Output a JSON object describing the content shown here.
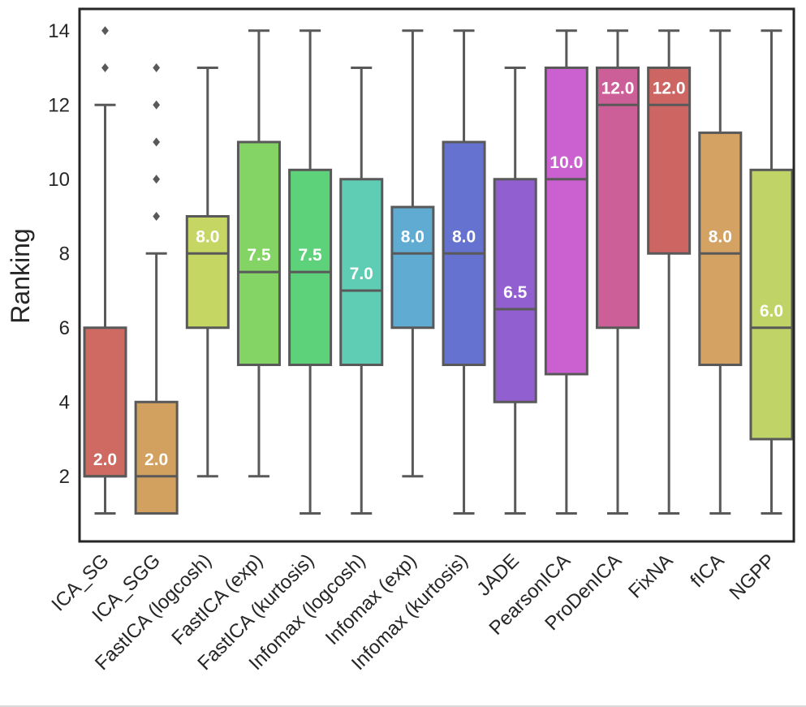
{
  "chart_data": {
    "type": "box",
    "title": "",
    "xlabel": "",
    "ylabel": "Ranking",
    "ylim": [
      0.4,
      14.7
    ],
    "yticks": [
      2,
      4,
      6,
      8,
      10,
      12,
      14
    ],
    "grid": false,
    "line_color": "#595959",
    "series": [
      {
        "name": "ICA_SG",
        "color": "#cf6a63",
        "whisker_low": 1,
        "q1": 2,
        "median": 2,
        "q3": 6,
        "whisker_high": 12,
        "outliers": [
          13,
          14
        ],
        "median_label": "2.0"
      },
      {
        "name": "ICA_SGG",
        "color": "#d2a05f",
        "whisker_low": 1,
        "q1": 1,
        "median": 2,
        "q3": 4,
        "whisker_high": 8,
        "outliers": [
          9,
          10,
          11,
          12,
          13
        ],
        "median_label": "2.0"
      },
      {
        "name": "FastICA (logcosh)",
        "color": "#c5d662",
        "whisker_low": 2,
        "q1": 6,
        "median": 8,
        "q3": 9,
        "whisker_high": 13,
        "outliers": [],
        "median_label": "8.0"
      },
      {
        "name": "FastICA (exp)",
        "color": "#84d465",
        "whisker_low": 2,
        "q1": 5,
        "median": 7.5,
        "q3": 11,
        "whisker_high": 14,
        "outliers": [],
        "median_label": "7.5"
      },
      {
        "name": "FastICA (kurtosis)",
        "color": "#5ed17b",
        "whisker_low": 1,
        "q1": 5,
        "median": 7.5,
        "q3": 10.25,
        "whisker_high": 14,
        "outliers": [],
        "median_label": "7.5"
      },
      {
        "name": "Infomax (logcosh)",
        "color": "#5fcdb3",
        "whisker_low": 1,
        "q1": 5,
        "median": 7,
        "q3": 10,
        "whisker_high": 13,
        "outliers": [],
        "median_label": "7.0"
      },
      {
        "name": "Infomax (exp)",
        "color": "#5fabd1",
        "whisker_low": 2,
        "q1": 6,
        "median": 8,
        "q3": 9.25,
        "whisker_high": 14,
        "outliers": [],
        "median_label": "8.0"
      },
      {
        "name": "Infomax (kurtosis)",
        "color": "#6572d0",
        "whisker_low": 1,
        "q1": 5,
        "median": 8,
        "q3": 11,
        "whisker_high": 14,
        "outliers": [],
        "median_label": "8.0"
      },
      {
        "name": "JADE",
        "color": "#925fd1",
        "whisker_low": 1,
        "q1": 4,
        "median": 6.5,
        "q3": 10,
        "whisker_high": 13,
        "outliers": [],
        "median_label": "6.5"
      },
      {
        "name": "PearsonICA",
        "color": "#cb60d0",
        "whisker_low": 1,
        "q1": 4.75,
        "median": 10,
        "q3": 13,
        "whisker_high": 14,
        "outliers": [],
        "median_label": "10.0"
      },
      {
        "name": "ProDenICA",
        "color": "#cc5f97",
        "whisker_low": 1,
        "q1": 6,
        "median": 12,
        "q3": 13,
        "whisker_high": 14,
        "outliers": [],
        "median_label": "12.0"
      },
      {
        "name": "FixNA",
        "color": "#cd6562",
        "whisker_low": 1,
        "q1": 8,
        "median": 12,
        "q3": 13,
        "whisker_high": 14,
        "outliers": [],
        "median_label": "12.0"
      },
      {
        "name": "fICA",
        "color": "#d4a262",
        "whisker_low": 1,
        "q1": 5,
        "median": 8,
        "q3": 11.25,
        "whisker_high": 14,
        "outliers": [],
        "median_label": "8.0"
      },
      {
        "name": "NGPP",
        "color": "#c0d366",
        "whisker_low": 1,
        "q1": 3,
        "median": 6,
        "q3": 10.25,
        "whisker_high": 14,
        "outliers": [],
        "median_label": "6.0"
      }
    ]
  }
}
